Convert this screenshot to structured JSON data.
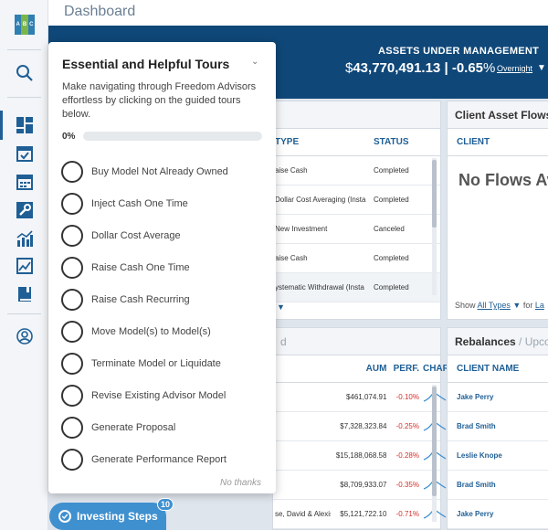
{
  "app": {
    "logo_letters": [
      "A",
      "B",
      "C"
    ],
    "page_title": "Dashboard"
  },
  "rail": {
    "icons": [
      "search-icon",
      "dashboard-icon",
      "calendar-icon",
      "calendar-grid-icon",
      "wrench-icon",
      "bar-chart-icon",
      "line-chart-icon",
      "book-icon",
      "user-circle-icon"
    ],
    "active": "dashboard-icon"
  },
  "aum": {
    "label": "ASSETS UNDER MANAGEMENT",
    "currency": "$",
    "amount": "43,770,491.13",
    "separator": "|",
    "change": "-0.65",
    "percent_sign": "%",
    "period": "Overnight"
  },
  "tours": {
    "title": "Essential and Helpful Tours",
    "description": "Make navigating through Freedom Advisors effortless by clicking on the guided tours below.",
    "progress_text": "0%",
    "progress": 0,
    "items": [
      "Buy Model Not Already Owned",
      "Inject Cash One Time",
      "Dollar Cost Average",
      "Raise Cash One Time",
      "Raise Cash Recurring",
      "Move Model(s) to Model(s)",
      "Terminate Model or Liquidate",
      "Revise Existing Advisor Model",
      "Generate Proposal",
      "Generate Performance Report"
    ],
    "no_thanks": "No thanks"
  },
  "transactions": {
    "columns": [
      "TYPE",
      "STATUS"
    ],
    "rows": [
      {
        "type": "aise Cash",
        "status": "Completed"
      },
      {
        "type": "Dollar Cost Averaging (Instar",
        "status": "Completed"
      },
      {
        "type": "New Investment",
        "status": "Canceled"
      },
      {
        "type": "aise Cash",
        "status": "Completed"
      },
      {
        "type": "ystematic Withdrawal (Insta",
        "status": "Completed"
      }
    ]
  },
  "flows": {
    "title": "Client Asset Flows",
    "column": "CLIENT",
    "empty_text": "No Flows Av",
    "show_label": "Show",
    "show_value": "All Types",
    "for_label": "for",
    "for_value": "La"
  },
  "aum_table": {
    "partial_head": "d",
    "columns": [
      "AUM",
      "PERF.",
      "CHART"
    ],
    "rows": [
      {
        "name": "",
        "aum": "$461,074.91",
        "perf": "-0.10%"
      },
      {
        "name": "",
        "aum": "$7,328,323.84",
        "perf": "-0.25%"
      },
      {
        "name": "",
        "aum": "$15,188,068.58",
        "perf": "-0.28%"
      },
      {
        "name": "",
        "aum": "$8,709,933.07",
        "perf": "-0.35%"
      },
      {
        "name": "se, David & Alexis",
        "aum": "$5,121,722.10",
        "perf": "-0.71%"
      }
    ]
  },
  "rebalances": {
    "title": "Rebalances",
    "subtitle": "/ Upcom",
    "column": "CLIENT NAME",
    "rows": [
      "Jake Perry",
      "Brad Smith",
      "Leslie Knope",
      "Brad Smith",
      "Jake Perry"
    ]
  },
  "steps": {
    "label": "Investing Steps",
    "badge": "10"
  },
  "colors": {
    "brand_dark": "#0f4778",
    "accent": "#1f5f96",
    "negative": "#d0312d",
    "steps": "#3f90cf"
  }
}
